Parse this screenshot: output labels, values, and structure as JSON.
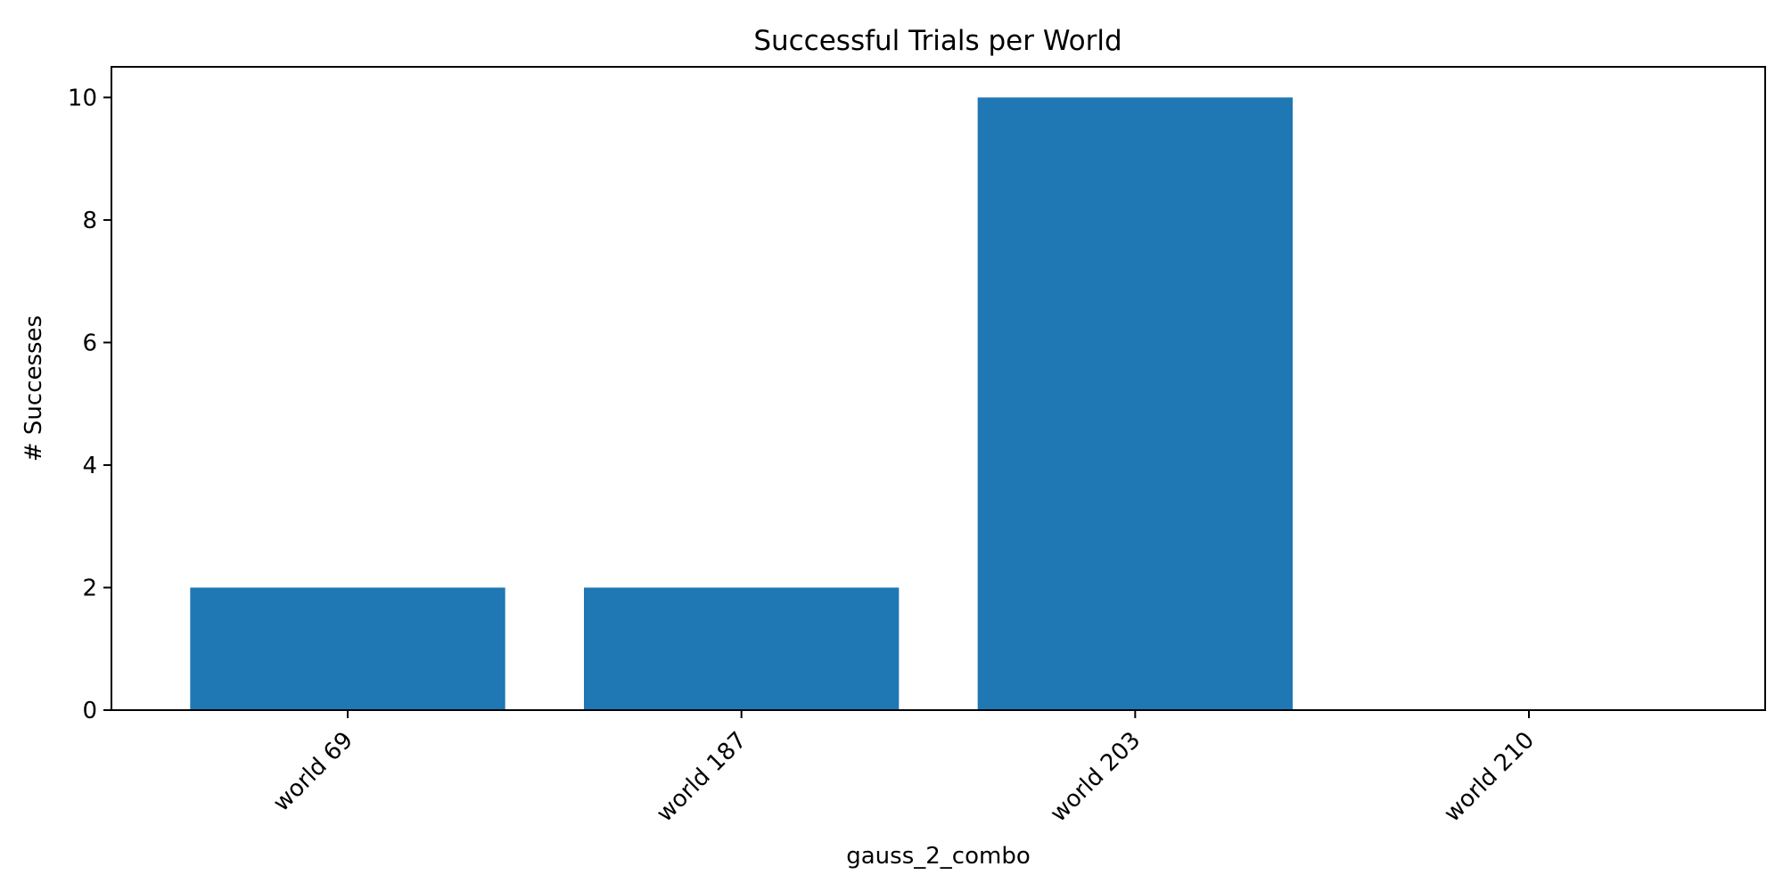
{
  "chart_data": {
    "type": "bar",
    "title": "Successful Trials per World",
    "xlabel": "gauss_2_combo",
    "ylabel": "# Successes",
    "categories": [
      "world 69",
      "world 187",
      "world 203",
      "world 210"
    ],
    "values": [
      2,
      2,
      10,
      0
    ],
    "ylim": [
      0,
      10.5
    ],
    "yticks": [
      0,
      2,
      4,
      6,
      8,
      10
    ],
    "bar_color": "#1f77b4",
    "grid": false,
    "legend": "none"
  }
}
